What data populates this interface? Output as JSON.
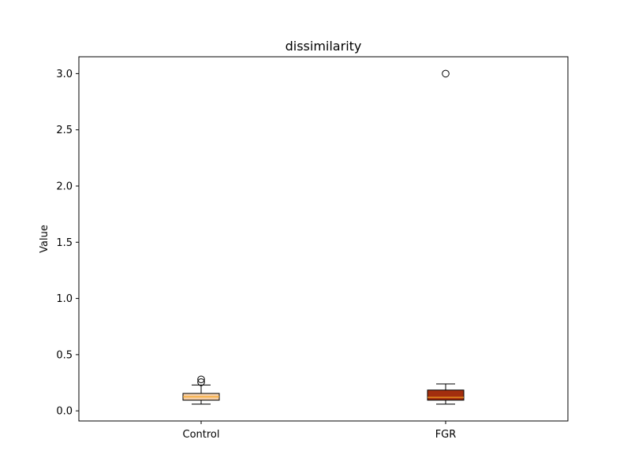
{
  "chart_data": {
    "type": "box",
    "title": "dissimilarity",
    "xlabel": "",
    "ylabel": "Value",
    "ylim": [
      -0.09,
      3.15
    ],
    "yticks": [
      0.0,
      0.5,
      1.0,
      1.5,
      2.0,
      2.5,
      3.0
    ],
    "ytick_labels": [
      "0.0",
      "0.5",
      "1.0",
      "1.5",
      "2.0",
      "2.5",
      "3.0"
    ],
    "grid": false,
    "categories": [
      "Control",
      "FGR"
    ],
    "boxes": [
      {
        "name": "Control",
        "whisker_low": 0.06,
        "q1": 0.095,
        "median": 0.125,
        "q3": 0.155,
        "whisker_high": 0.23,
        "outliers": [
          0.255,
          0.28
        ],
        "color": "#F6CFA8"
      },
      {
        "name": "FGR",
        "whisker_low": 0.06,
        "q1": 0.095,
        "median": 0.12,
        "q3": 0.185,
        "whisker_high": 0.24,
        "outliers": [
          3.0
        ],
        "color": "#A32E0E"
      }
    ],
    "median_color": "#F5A623"
  }
}
